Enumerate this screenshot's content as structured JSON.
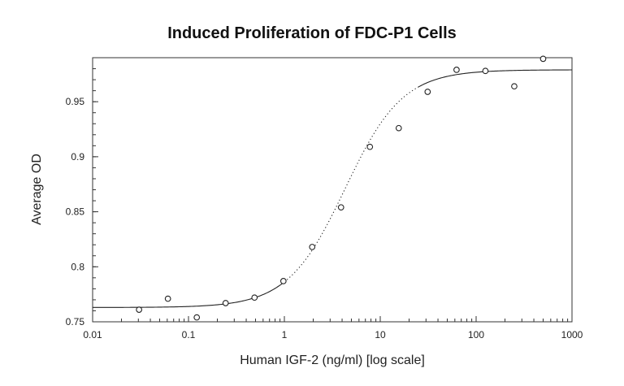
{
  "chart_data": {
    "type": "scatter",
    "title": "Induced Proliferation of FDC-P1 Cells",
    "xlabel": "Human IGF-2 (ng/ml) [log scale]",
    "ylabel": "Average OD",
    "x_scale": "log",
    "xlim": [
      0.01,
      1000
    ],
    "ylim": [
      0.75,
      0.99
    ],
    "x_tick_values": [
      0.01,
      0.1,
      1,
      10,
      100,
      1000
    ],
    "x_tick_labels": [
      "0.01",
      "0.1",
      "1",
      "10",
      "100",
      "1000"
    ],
    "y_tick_values": [
      0.75,
      0.8,
      0.85,
      0.9,
      0.95
    ],
    "y_tick_labels": [
      "0.75",
      "0.8",
      "0.85",
      "0.9",
      "0.95"
    ],
    "grid": false,
    "legend": "none",
    "points": {
      "x": [
        0.0305,
        0.061,
        0.122,
        0.244,
        0.488,
        0.977,
        1.95,
        3.9,
        7.8,
        15.6,
        31.2,
        62.5,
        125,
        250,
        500
      ],
      "y": [
        0.761,
        0.771,
        0.754,
        0.767,
        0.772,
        0.787,
        0.818,
        0.854,
        0.909,
        0.926,
        0.959,
        0.979,
        0.978,
        0.964,
        0.989
      ]
    },
    "fit_curve": {
      "model": "4-parameter logistic",
      "bottom": 0.763,
      "top": 0.979,
      "ec50": 4.3,
      "hill": 1.45
    }
  }
}
